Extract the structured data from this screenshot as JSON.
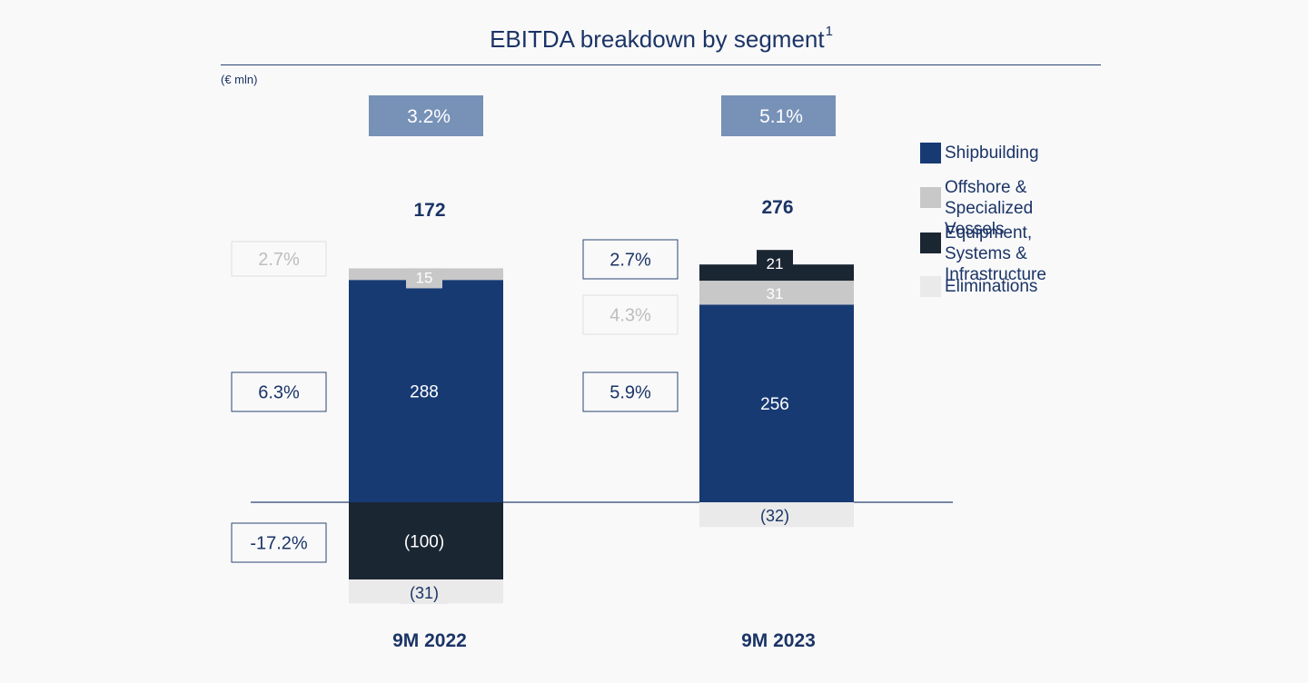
{
  "header": {
    "title": "EBITDA breakdown by segment",
    "title_footnote": "1",
    "unit": "(€ mln)"
  },
  "colors": {
    "shipbuilding": "#173a73",
    "offshore": "#c8c8c9",
    "equipment": "#1b2633",
    "eliminations": "#eaeaea",
    "margin_box": "#7791b7",
    "text_dark": "#1b3466"
  },
  "legend": [
    {
      "key": "shipbuilding",
      "label": "Shipbuilding"
    },
    {
      "key": "offshore",
      "label": "Offshore & Specialized Vessels"
    },
    {
      "key": "equipment",
      "label": "Equipment, Systems & Infrastructure"
    },
    {
      "key": "eliminations",
      "label": "Eliminations"
    }
  ],
  "chart_data": {
    "type": "bar",
    "stacked": true,
    "title": "EBITDA breakdown by segment",
    "unit": "(€ mln)",
    "categories": [
      "9M 2022",
      "9M 2023"
    ],
    "totals": [
      "172",
      "276"
    ],
    "group_margins": [
      "3.2%",
      "5.1%"
    ],
    "series": [
      {
        "name": "Shipbuilding",
        "key": "shipbuilding",
        "values": [
          288,
          256
        ],
        "labels": [
          "288",
          "256"
        ],
        "margins": [
          "6.3%",
          "5.9%"
        ]
      },
      {
        "name": "Offshore & Specialized Vessels",
        "key": "offshore",
        "values": [
          15,
          31
        ],
        "labels": [
          "15",
          "31"
        ],
        "margins": [
          "2.7%",
          "4.3%"
        ]
      },
      {
        "name": "Equipment, Systems & Infrastructure",
        "key": "equipment",
        "values": [
          -100,
          21
        ],
        "labels": [
          "(100)",
          "21"
        ],
        "margins": [
          "-17.2%",
          "2.7%"
        ]
      },
      {
        "name": "Eliminations",
        "key": "eliminations",
        "values": [
          -31,
          -32
        ],
        "labels": [
          "(31)",
          "(32)"
        ]
      }
    ],
    "legend_position": "right",
    "grid": false
  }
}
